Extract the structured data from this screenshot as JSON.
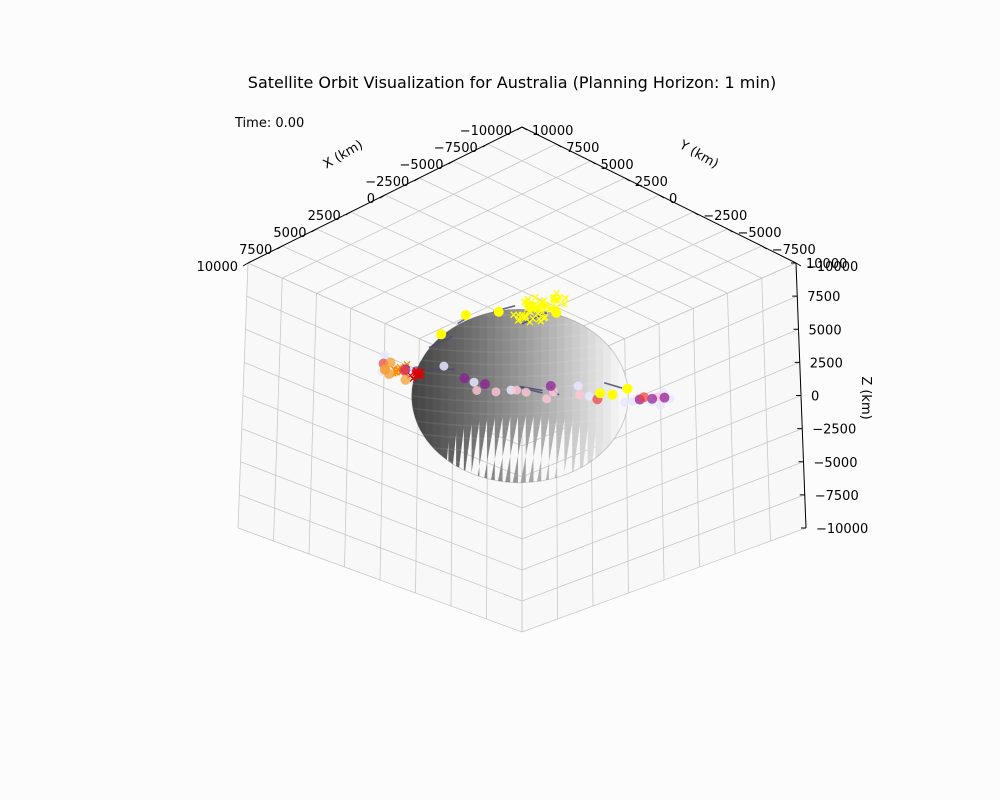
{
  "chart_data": {
    "type": "scatter",
    "projection": "3d",
    "title": "Satellite Orbit Visualization for Australia (Planning Horizon: 1 min)",
    "time_label": "Time: 0.00",
    "xlabel": "X (km)",
    "ylabel": "Y (km)",
    "zlabel": "Z (km)",
    "xlim": [
      -10000,
      10000
    ],
    "ylim": [
      -10000,
      10000
    ],
    "zlim": [
      -10000,
      10000
    ],
    "x_ticks": [
      {
        "value": -10000,
        "label": "−10000"
      },
      {
        "value": -7500,
        "label": "−7500"
      },
      {
        "value": -5000,
        "label": "−5000"
      },
      {
        "value": -2500,
        "label": "−2500"
      },
      {
        "value": 0,
        "label": "0"
      },
      {
        "value": 2500,
        "label": "2500"
      },
      {
        "value": 5000,
        "label": "5000"
      },
      {
        "value": 7500,
        "label": "7500"
      },
      {
        "value": 10000,
        "label": "10000"
      }
    ],
    "y_ticks": [
      {
        "value": 10000,
        "label": "10000"
      },
      {
        "value": 7500,
        "label": "7500"
      },
      {
        "value": 5000,
        "label": "5000"
      },
      {
        "value": 2500,
        "label": "2500"
      },
      {
        "value": 0,
        "label": "0"
      },
      {
        "value": -2500,
        "label": "−2500"
      },
      {
        "value": -5000,
        "label": "−5000"
      },
      {
        "value": -7500,
        "label": "−7500"
      },
      {
        "value": -10000,
        "label": "−10000"
      }
    ],
    "z_ticks": [
      {
        "value": 10000,
        "label": "10000"
      },
      {
        "value": 7500,
        "label": "7500"
      },
      {
        "value": 5000,
        "label": "5000"
      },
      {
        "value": 2500,
        "label": "2500"
      },
      {
        "value": 0,
        "label": "0"
      },
      {
        "value": -2500,
        "label": "−2500"
      },
      {
        "value": -5000,
        "label": "−5000"
      },
      {
        "value": -7500,
        "label": "−7500"
      },
      {
        "value": -10000,
        "label": "−10000"
      }
    ],
    "grid": true,
    "earth_radius_km": 6371,
    "series": [
      {
        "color": "#e8e8ff",
        "opacity": 0.85,
        "size": 4.5,
        "points": [
          [
            -300,
            -7100,
            4300
          ],
          [
            -1200,
            -6900,
            5200
          ],
          [
            3100,
            -6600,
            4600
          ],
          [
            5600,
            -4600,
            3700
          ],
          [
            6600,
            -3100,
            2900
          ],
          [
            7000,
            -700,
            1800
          ],
          [
            7000,
            1900,
            -400
          ],
          [
            6200,
            4300,
            -1800
          ],
          [
            4500,
            6100,
            -2600
          ],
          [
            2100,
            7000,
            -3700
          ],
          [
            -900,
            7200,
            -4200
          ],
          [
            -3400,
            6900,
            -3400
          ],
          [
            -5800,
            5000,
            -3000
          ],
          [
            -6700,
            2800,
            -2200
          ],
          [
            -6900,
            600,
            -1200
          ],
          [
            -6500,
            -2400,
            1500
          ],
          [
            -4800,
            -5600,
            2700
          ],
          [
            -2200,
            -6700,
            3400
          ],
          [
            4900,
            -5100,
            5200
          ],
          [
            -3800,
            6300,
            -4100
          ],
          [
            6800,
            2500,
            -300
          ],
          [
            -2900,
            -6400,
            3700
          ]
        ]
      },
      {
        "color": "#ffc6d6",
        "opacity": 0.8,
        "size": 4.5,
        "points": [
          [
            -4200,
            -6100,
            2800
          ],
          [
            -5400,
            -5100,
            2300
          ],
          [
            -6300,
            -4000,
            1800
          ],
          [
            -6800,
            -2600,
            900
          ],
          [
            -6900,
            -1200,
            200
          ],
          [
            -6500,
            3400,
            -2100
          ],
          [
            -4200,
            6200,
            -3400
          ],
          [
            -1500,
            7000,
            -3900
          ],
          [
            -3200,
            -6500,
            3100
          ],
          [
            -5000,
            -5400,
            2600
          ],
          [
            6500,
            3400,
            -2900
          ],
          [
            -6100,
            -4300,
            1400
          ]
        ]
      },
      {
        "color": "#8b1a96",
        "opacity": 0.7,
        "size": 5,
        "points": [
          [
            1500,
            -7000,
            5000
          ],
          [
            -2600,
            -6800,
            4200
          ],
          [
            -3600,
            -6300,
            3500
          ],
          [
            -6200,
            -4100,
            2300
          ],
          [
            -6700,
            1900,
            -1600
          ],
          [
            -5200,
            5200,
            -3000
          ],
          [
            -6400,
            3100,
            -2100
          ],
          [
            600,
            -7100,
            4900
          ]
        ]
      },
      {
        "color": "#ef3d3d",
        "opacity": 0.7,
        "size": 5,
        "points": [
          [
            4300,
            -5800,
            4900
          ],
          [
            6300,
            -2300,
            2700
          ],
          [
            6900,
            1200,
            800
          ],
          [
            6400,
            3800,
            -900
          ],
          [
            3800,
            6200,
            -3200
          ],
          [
            1400,
            6900,
            -3900
          ],
          [
            -1900,
            7000,
            -3800
          ],
          [
            5200,
            4900,
            -2100
          ],
          [
            6500,
            -900,
            1800
          ],
          [
            2400,
            6700,
            -3700
          ]
        ]
      },
      {
        "color": "#f5a033",
        "opacity": 0.75,
        "size": 5,
        "points": [
          [
            2900,
            -6700,
            5400
          ],
          [
            4500,
            -5500,
            4300
          ],
          [
            5300,
            -4700,
            3900
          ],
          [
            6200,
            -3500,
            3000
          ],
          [
            7000,
            300,
            1000
          ],
          [
            6800,
            2400,
            -500
          ],
          [
            5800,
            4700,
            -1700
          ],
          [
            4100,
            6100,
            -2600
          ],
          [
            6600,
            -1900,
            1800
          ]
        ]
      },
      {
        "color": "#ffff00",
        "opacity": 1.0,
        "size": 5,
        "points": [
          [
            2600,
            -3300,
            6000
          ],
          [
            -2500,
            0,
            6100
          ],
          [
            3400,
            1700,
            5400
          ],
          [
            4000,
            -100,
            6000
          ],
          [
            2600,
            3300,
            5100
          ],
          [
            -1200,
            6500,
            -2900
          ],
          [
            200,
            6800,
            -3500
          ],
          [
            900,
            6600,
            -3300
          ],
          [
            3100,
            5800,
            -3200
          ]
        ]
      }
    ],
    "markers": [
      {
        "type": "x",
        "color": "#ff8c00",
        "count": 18,
        "center": [
          6600,
          -2600,
          2900
        ],
        "spread": 450
      },
      {
        "type": "x",
        "color": "#e00000",
        "count": 10,
        "center": [
          6700,
          -1000,
          1800
        ],
        "spread": 350
      },
      {
        "type": "x",
        "color": "#ffff00",
        "count": 60,
        "center": [
          -1000,
          300,
          6400
        ],
        "spread": 1200
      }
    ],
    "links": [
      [
        [
          0,
          -7000,
          5000
        ],
        [
          -1500,
          -6400,
          4700
        ]
      ],
      [
        [
          -5000,
          -5200,
          2800
        ],
        [
          -5900,
          -4400,
          2100
        ]
      ],
      [
        [
          -5300,
          -5400,
          2800
        ],
        [
          -6100,
          -4600,
          2000
        ]
      ],
      [
        [
          3900,
          -5900,
          4400
        ],
        [
          4700,
          -5100,
          3500
        ]
      ],
      [
        [
          6200,
          -2700,
          3000
        ],
        [
          6800,
          -1500,
          1900
        ]
      ],
      [
        [
          -2200,
          -400,
          6300
        ],
        [
          -1600,
          -1600,
          6000
        ]
      ],
      [
        [
          2000,
          -3100,
          5700
        ],
        [
          3000,
          -3800,
          5200
        ]
      ],
      [
        [
          3200,
          1100,
          5700
        ],
        [
          1900,
          1400,
          6000
        ]
      ],
      [
        [
          4100,
          100,
          5700
        ],
        [
          3400,
          -1300,
          5900
        ]
      ],
      [
        [
          2600,
          3200,
          5100
        ],
        [
          1800,
          2000,
          5700
        ]
      ],
      [
        [
          -900,
          6400,
          -2800
        ],
        [
          -200,
          5800,
          -2100
        ]
      ],
      [
        [
          3000,
          5700,
          -3000
        ],
        [
          2800,
          4900,
          -2000
        ]
      ]
    ]
  }
}
